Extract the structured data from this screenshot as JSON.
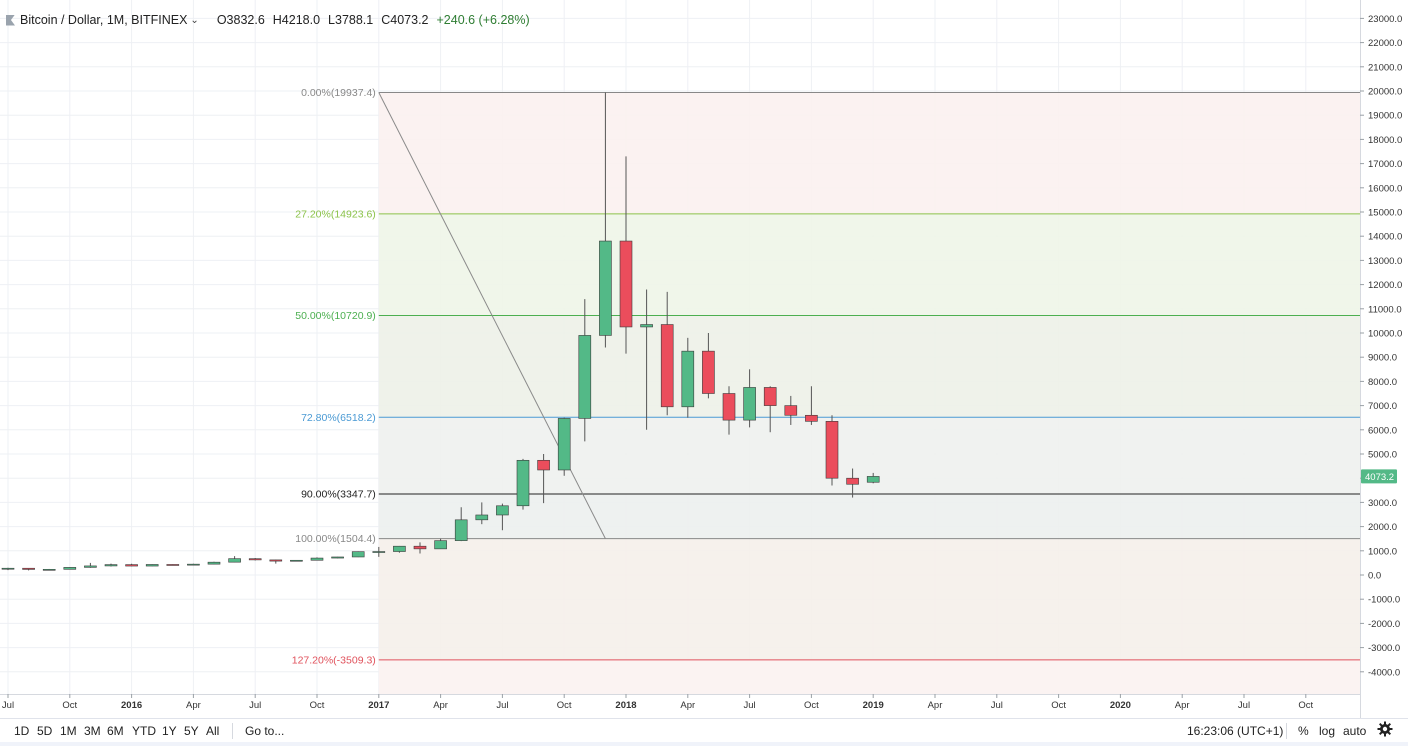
{
  "legend": {
    "symbol": "Bitcoin / Dollar, 1M, BITFINEX",
    "caret": "⌄",
    "open": "O3832.6",
    "high": "H4218.0",
    "low": "L3788.1",
    "close": "C4073.2",
    "change": "+240.6 (+6.28%)"
  },
  "toolbar": {
    "ranges": [
      "1D",
      "5D",
      "1M",
      "3M",
      "6M",
      "YTD",
      "1Y",
      "5Y",
      "All"
    ],
    "goto": "Go to...",
    "time": "16:23:06 (UTC+1)",
    "percent": "%",
    "log": "log",
    "auto": "auto",
    "settings_icon": "gear-icon"
  },
  "colors": {
    "up": "#53b987",
    "down": "#eb4d5c",
    "wick": "#555555"
  },
  "chart_data": {
    "type": "candlestick",
    "title": "Bitcoin / Dollar, 1M, BITFINEX",
    "ylim": [
      -4500,
      23500
    ],
    "y_ticks": [
      "23000.0",
      "22000.0",
      "21000.0",
      "20000.0",
      "19000.0",
      "18000.0",
      "17000.0",
      "16000.0",
      "15000.0",
      "14000.0",
      "13000.0",
      "12000.0",
      "11000.0",
      "10000.0",
      "9000.0",
      "8000.0",
      "7000.0",
      "6000.0",
      "5000.0",
      "4000.0",
      "3000.0",
      "2000.0",
      "1000.0",
      "0.0",
      "-1000.0",
      "-2000.0",
      "-3000.0",
      "-4000.0"
    ],
    "x_ticks": [
      {
        "label": "Jul",
        "bold": false
      },
      {
        "label": "Oct",
        "bold": false
      },
      {
        "label": "2016",
        "bold": true
      },
      {
        "label": "Apr",
        "bold": false
      },
      {
        "label": "Jul",
        "bold": false
      },
      {
        "label": "Oct",
        "bold": false
      },
      {
        "label": "2017",
        "bold": true
      },
      {
        "label": "Apr",
        "bold": false
      },
      {
        "label": "Jul",
        "bold": false
      },
      {
        "label": "Oct",
        "bold": false
      },
      {
        "label": "2018",
        "bold": true
      },
      {
        "label": "Apr",
        "bold": false
      },
      {
        "label": "Jul",
        "bold": false
      },
      {
        "label": "Oct",
        "bold": false
      },
      {
        "label": "2019",
        "bold": true
      },
      {
        "label": "Apr",
        "bold": false
      },
      {
        "label": "Jul",
        "bold": false
      },
      {
        "label": "Oct",
        "bold": false
      },
      {
        "label": "2020",
        "bold": true
      },
      {
        "label": "Apr",
        "bold": false
      },
      {
        "label": "Jul",
        "bold": false
      },
      {
        "label": "Oct",
        "bold": false
      }
    ],
    "candles": [
      {
        "date": "2015-07",
        "o": 250,
        "h": 300,
        "l": 200,
        "c": 280
      },
      {
        "date": "2015-08",
        "o": 280,
        "h": 290,
        "l": 190,
        "c": 230
      },
      {
        "date": "2015-09",
        "o": 230,
        "h": 250,
        "l": 210,
        "c": 235
      },
      {
        "date": "2015-10",
        "o": 235,
        "h": 330,
        "l": 230,
        "c": 315
      },
      {
        "date": "2015-11",
        "o": 315,
        "h": 500,
        "l": 300,
        "c": 375
      },
      {
        "date": "2015-12",
        "o": 375,
        "h": 470,
        "l": 350,
        "c": 430
      },
      {
        "date": "2016-01",
        "o": 430,
        "h": 465,
        "l": 360,
        "c": 370
      },
      {
        "date": "2016-02",
        "o": 370,
        "h": 440,
        "l": 365,
        "c": 435
      },
      {
        "date": "2016-03",
        "o": 435,
        "h": 440,
        "l": 400,
        "c": 416
      },
      {
        "date": "2016-04",
        "o": 416,
        "h": 465,
        "l": 410,
        "c": 448
      },
      {
        "date": "2016-05",
        "o": 448,
        "h": 550,
        "l": 440,
        "c": 530
      },
      {
        "date": "2016-06",
        "o": 530,
        "h": 780,
        "l": 520,
        "c": 675
      },
      {
        "date": "2016-07",
        "o": 675,
        "h": 700,
        "l": 600,
        "c": 624
      },
      {
        "date": "2016-08",
        "o": 624,
        "h": 630,
        "l": 470,
        "c": 574
      },
      {
        "date": "2016-09",
        "o": 574,
        "h": 620,
        "l": 570,
        "c": 609
      },
      {
        "date": "2016-10",
        "o": 609,
        "h": 730,
        "l": 605,
        "c": 700
      },
      {
        "date": "2016-11",
        "o": 700,
        "h": 750,
        "l": 690,
        "c": 745
      },
      {
        "date": "2016-12",
        "o": 745,
        "h": 975,
        "l": 740,
        "c": 965
      },
      {
        "date": "2017-01",
        "o": 965,
        "h": 1160,
        "l": 750,
        "c": 970
      },
      {
        "date": "2017-02",
        "o": 970,
        "h": 1200,
        "l": 920,
        "c": 1190
      },
      {
        "date": "2017-03",
        "o": 1190,
        "h": 1350,
        "l": 890,
        "c": 1080
      },
      {
        "date": "2017-04",
        "o": 1080,
        "h": 1500,
        "l": 1075,
        "c": 1420
      },
      {
        "date": "2017-05",
        "o": 1420,
        "h": 2800,
        "l": 1400,
        "c": 2280
      },
      {
        "date": "2017-06",
        "o": 2280,
        "h": 3000,
        "l": 2100,
        "c": 2480
      },
      {
        "date": "2017-07",
        "o": 2480,
        "h": 2950,
        "l": 1850,
        "c": 2860
      },
      {
        "date": "2017-08",
        "o": 2860,
        "h": 4800,
        "l": 2700,
        "c": 4740
      },
      {
        "date": "2017-09",
        "o": 4740,
        "h": 5000,
        "l": 2970,
        "c": 4340
      },
      {
        "date": "2017-10",
        "o": 4340,
        "h": 6500,
        "l": 4100,
        "c": 6470
      },
      {
        "date": "2017-11",
        "o": 6470,
        "h": 11400,
        "l": 5520,
        "c": 9900
      },
      {
        "date": "2017-12",
        "o": 9900,
        "h": 19937.4,
        "l": 9400,
        "c": 13800
      },
      {
        "date": "2018-01",
        "o": 13800,
        "h": 17300,
        "l": 9150,
        "c": 10250
      },
      {
        "date": "2018-02",
        "o": 10250,
        "h": 11800,
        "l": 6000,
        "c": 10350
      },
      {
        "date": "2018-03",
        "o": 10350,
        "h": 11700,
        "l": 6600,
        "c": 6950
      },
      {
        "date": "2018-04",
        "o": 6950,
        "h": 9800,
        "l": 6500,
        "c": 9250
      },
      {
        "date": "2018-05",
        "o": 9250,
        "h": 10000,
        "l": 7300,
        "c": 7500
      },
      {
        "date": "2018-06",
        "o": 7500,
        "h": 7800,
        "l": 5800,
        "c": 6400
      },
      {
        "date": "2018-07",
        "o": 6400,
        "h": 8500,
        "l": 6100,
        "c": 7750
      },
      {
        "date": "2018-08",
        "o": 7750,
        "h": 7800,
        "l": 5900,
        "c": 7000
      },
      {
        "date": "2018-09",
        "o": 7000,
        "h": 7400,
        "l": 6200,
        "c": 6600
      },
      {
        "date": "2018-10",
        "o": 6600,
        "h": 7800,
        "l": 6200,
        "c": 6350
      },
      {
        "date": "2018-11",
        "o": 6350,
        "h": 6600,
        "l": 3700,
        "c": 4000
      },
      {
        "date": "2018-12",
        "o": 4000,
        "h": 4400,
        "l": 3200,
        "c": 3750
      },
      {
        "date": "2019-01",
        "o": 3832.6,
        "h": 4218.0,
        "l": 3788.1,
        "c": 4073.2
      }
    ],
    "last_price_label": "4073.2",
    "fib_levels": [
      {
        "label": "0.00%(19937.4)",
        "value": 19937.4,
        "color": "#888888"
      },
      {
        "label": "27.20%(14923.6)",
        "value": 14923.6,
        "color": "#8bc34a"
      },
      {
        "label": "50.00%(10720.9)",
        "value": 10720.9,
        "color": "#4caf50"
      },
      {
        "label": "72.80%(6518.2)",
        "value": 6518.2,
        "color": "#4a9ad4"
      },
      {
        "label": "90.00%(3347.7)",
        "value": 3347.7,
        "color": "#222222"
      },
      {
        "label": "100.00%(1504.4)",
        "value": 1504.4,
        "color": "#888888"
      },
      {
        "label": "127.20%(-3509.3)",
        "value": -3509.3,
        "color": "#e0525c"
      }
    ],
    "fib_trendline": {
      "from": {
        "date": "2017-01",
        "value": 19937.4
      },
      "to": {
        "date": "2017-12",
        "value": 1504.4
      }
    },
    "grid": true
  }
}
